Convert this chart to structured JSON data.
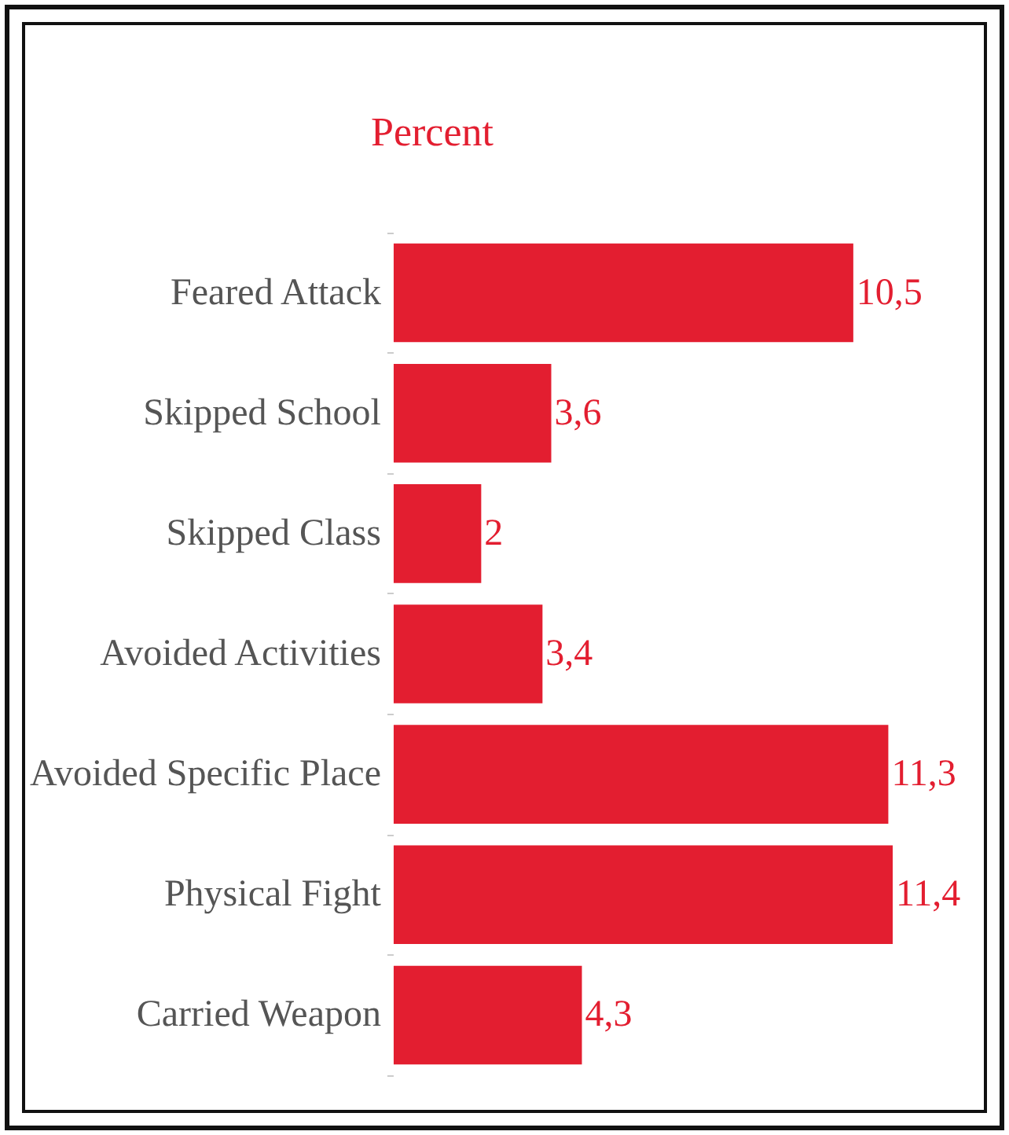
{
  "chart_data": {
    "type": "bar",
    "orientation": "horizontal",
    "title": "Percent",
    "categories": [
      "Feared Attack",
      "Skipped School",
      "Skipped Class",
      "Avoided Activities",
      "Avoided Specific Place",
      "Physical Fight",
      "Carried Weapon"
    ],
    "values": [
      10.5,
      3.6,
      2,
      3.4,
      11.3,
      11.4,
      4.3
    ],
    "value_labels": [
      "10,5",
      "3,6",
      "2",
      "3,4",
      "11,3",
      "11,4",
      "4,3"
    ],
    "color": "#e31e30"
  }
}
